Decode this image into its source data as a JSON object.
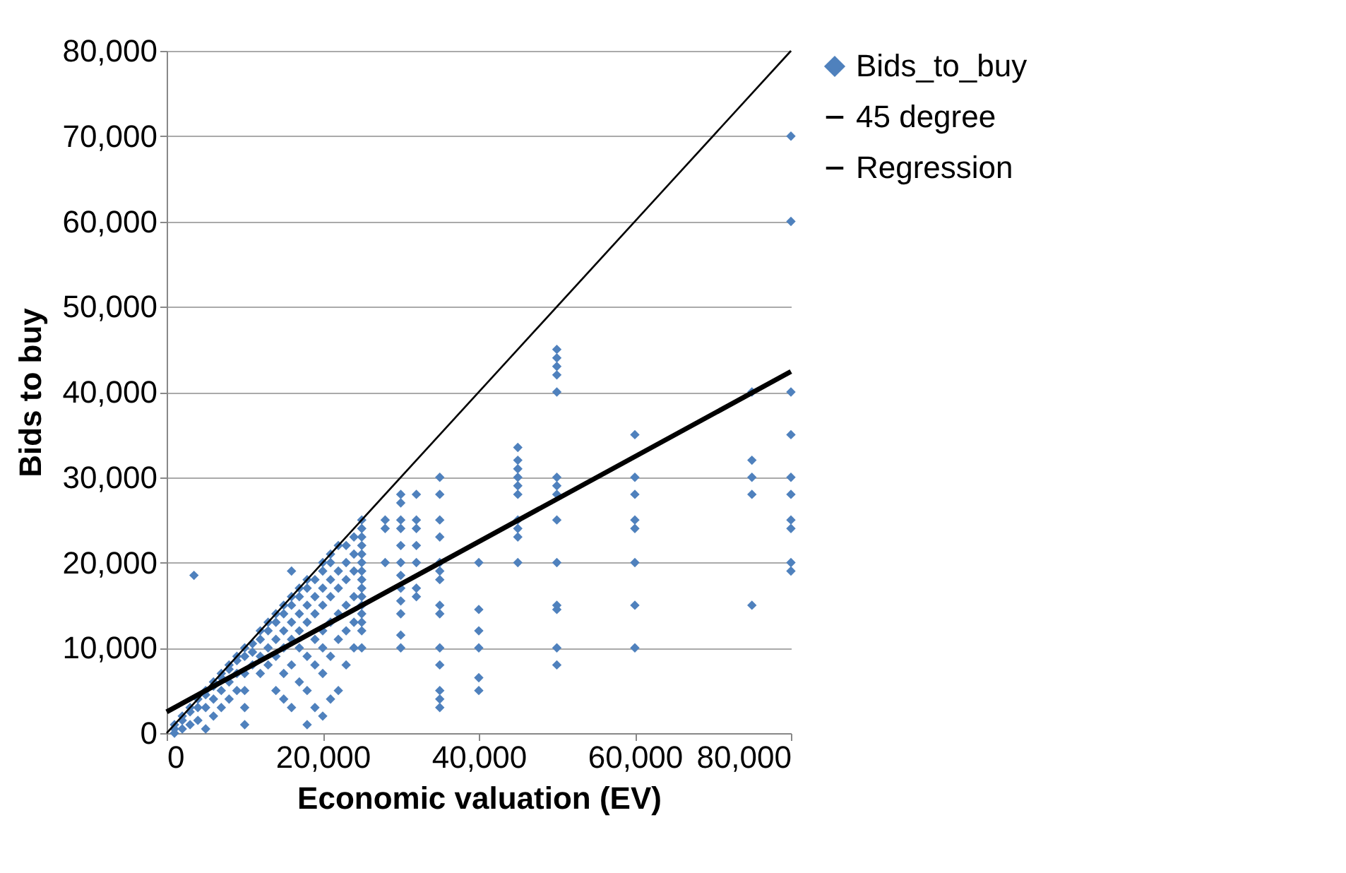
{
  "chart_data": {
    "type": "scatter",
    "xlabel": "Economic valuation (EV)",
    "ylabel": "Bids to buy",
    "xlim": [
      0,
      80000
    ],
    "ylim": [
      0,
      80000
    ],
    "xticks": [
      0,
      {
        "value": 20000,
        "label": "20,000"
      },
      {
        "value": 40000,
        "label": "40,000"
      },
      {
        "value": 60000,
        "label": "60,000"
      },
      {
        "value": 80000,
        "label": "80,000"
      }
    ],
    "yticks": [
      0,
      {
        "value": 10000,
        "label": "10,000"
      },
      {
        "value": 20000,
        "label": "20,000"
      },
      {
        "value": 30000,
        "label": "30,000"
      },
      {
        "value": 40000,
        "label": "40,000"
      },
      {
        "value": 50000,
        "label": "50,000"
      },
      {
        "value": 60000,
        "label": "60,000"
      },
      {
        "value": 70000,
        "label": "70,000"
      },
      {
        "value": 80000,
        "label": "80,000"
      }
    ],
    "grid": "y",
    "legend": "right",
    "series": [
      {
        "name": "Bids_to_buy",
        "marker": "diamond",
        "color": "#4f81bd",
        "x": [
          1000,
          1000,
          1000,
          2000,
          2000,
          2000,
          3000,
          3000,
          3000,
          3500,
          4000,
          4000,
          4000,
          5000,
          5000,
          5000,
          5000,
          6000,
          6000,
          6000,
          6000,
          7000,
          7000,
          7000,
          7000,
          8000,
          8000,
          8000,
          8000,
          9000,
          9000,
          9000,
          9000,
          10000,
          10000,
          10000,
          10000,
          10000,
          10000,
          11000,
          11000,
          11000,
          12000,
          12000,
          12000,
          12000,
          13000,
          13000,
          13000,
          13000,
          14000,
          14000,
          14000,
          14000,
          14000,
          15000,
          15000,
          15000,
          15000,
          15000,
          15000,
          16000,
          16000,
          16000,
          16000,
          16000,
          16000,
          16000,
          17000,
          17000,
          17000,
          17000,
          17000,
          17000,
          18000,
          18000,
          18000,
          18000,
          18000,
          18000,
          18000,
          19000,
          19000,
          19000,
          19000,
          19000,
          19000,
          20000,
          20000,
          20000,
          20000,
          20000,
          20000,
          20000,
          20000,
          21000,
          21000,
          21000,
          21000,
          21000,
          21000,
          21000,
          22000,
          22000,
          22000,
          22000,
          22000,
          22000,
          23000,
          23000,
          23000,
          23000,
          23000,
          23000,
          24000,
          24000,
          24000,
          24000,
          24000,
          24000,
          25000,
          25000,
          25000,
          25000,
          25000,
          25000,
          25000,
          25000,
          25000,
          25000,
          25000,
          25000,
          25000,
          25000,
          25000,
          28000,
          28000,
          28000,
          30000,
          30000,
          30000,
          30000,
          30000,
          30000,
          30000,
          30000,
          30000,
          30000,
          30000,
          30000,
          32000,
          32000,
          32000,
          32000,
          32000,
          32000,
          32000,
          35000,
          35000,
          35000,
          35000,
          35000,
          35000,
          35000,
          35000,
          35000,
          35000,
          35000,
          35000,
          35000,
          35000,
          40000,
          40000,
          40000,
          40000,
          40000,
          40000,
          45000,
          45000,
          45000,
          45000,
          45000,
          45000,
          45000,
          45000,
          45000,
          45000,
          50000,
          50000,
          50000,
          50000,
          50000,
          50000,
          50000,
          50000,
          50000,
          50000,
          50000,
          50000,
          50000,
          50000,
          60000,
          60000,
          60000,
          60000,
          60000,
          60000,
          60000,
          60000,
          75000,
          75000,
          75000,
          75000,
          75000,
          80000,
          80000,
          80000,
          80000,
          80000,
          80000,
          80000,
          80000,
          80000,
          80000
        ],
        "values": [
          0,
          500,
          1000,
          500,
          1500,
          2000,
          1000,
          2500,
          3000,
          18500,
          1500,
          3000,
          4000,
          500,
          3000,
          4500,
          5000,
          2000,
          4000,
          5500,
          6000,
          3000,
          5000,
          6500,
          7000,
          4000,
          6000,
          7500,
          8000,
          5000,
          7000,
          8500,
          9000,
          1000,
          3000,
          5000,
          7000,
          9000,
          10000,
          8000,
          9500,
          10500,
          7000,
          9000,
          11000,
          12000,
          8000,
          10000,
          12000,
          13000,
          5000,
          9000,
          11000,
          13000,
          14000,
          4000,
          7000,
          10000,
          12000,
          14000,
          15000,
          3000,
          8000,
          11000,
          13000,
          15000,
          16000,
          19000,
          6000,
          10000,
          12000,
          14000,
          16000,
          17000,
          1000,
          5000,
          9000,
          13000,
          15000,
          17000,
          18000,
          3000,
          8000,
          11000,
          14000,
          16000,
          18000,
          2000,
          7000,
          10000,
          12000,
          15000,
          17000,
          19000,
          20000,
          4000,
          9000,
          13000,
          16000,
          18000,
          20000,
          21000,
          5000,
          11000,
          14000,
          17000,
          19000,
          22000,
          8000,
          12000,
          15000,
          18000,
          20000,
          22000,
          10000,
          13000,
          16000,
          19000,
          21000,
          23000,
          10000,
          12000,
          13000,
          14000,
          15000,
          16000,
          17000,
          18000,
          19000,
          20000,
          21000,
          22000,
          23000,
          24000,
          25000,
          20000,
          24000,
          25000,
          10000,
          11500,
          14000,
          15500,
          17000,
          18500,
          20000,
          22000,
          24000,
          25000,
          27000,
          28000,
          16000,
          17000,
          20000,
          22000,
          24000,
          25000,
          28000,
          3000,
          4000,
          5000,
          8000,
          10000,
          14000,
          15000,
          18000,
          19000,
          20000,
          23000,
          25000,
          28000,
          30000,
          5000,
          6500,
          10000,
          12000,
          14500,
          20000,
          20000,
          23000,
          24000,
          25000,
          28000,
          29000,
          30000,
          31000,
          32000,
          33500,
          8000,
          10000,
          14500,
          15000,
          20000,
          25000,
          28000,
          29000,
          30000,
          40000,
          42000,
          43000,
          44000,
          45000,
          10000,
          15000,
          20000,
          24000,
          25000,
          28000,
          30000,
          35000,
          15000,
          28000,
          30000,
          32000,
          40000,
          19000,
          20000,
          24000,
          25000,
          28000,
          30000,
          35000,
          40000,
          60000,
          70000
        ]
      },
      {
        "name": "45 degree",
        "type": "line",
        "marker": "none",
        "color": "#000000",
        "x": [
          0,
          80000
        ],
        "values": [
          0,
          80000
        ]
      },
      {
        "name": "Regression",
        "type": "line",
        "marker": "none",
        "color": "#000000",
        "x": [
          0,
          80000
        ],
        "values": [
          2500,
          42400
        ]
      }
    ]
  }
}
